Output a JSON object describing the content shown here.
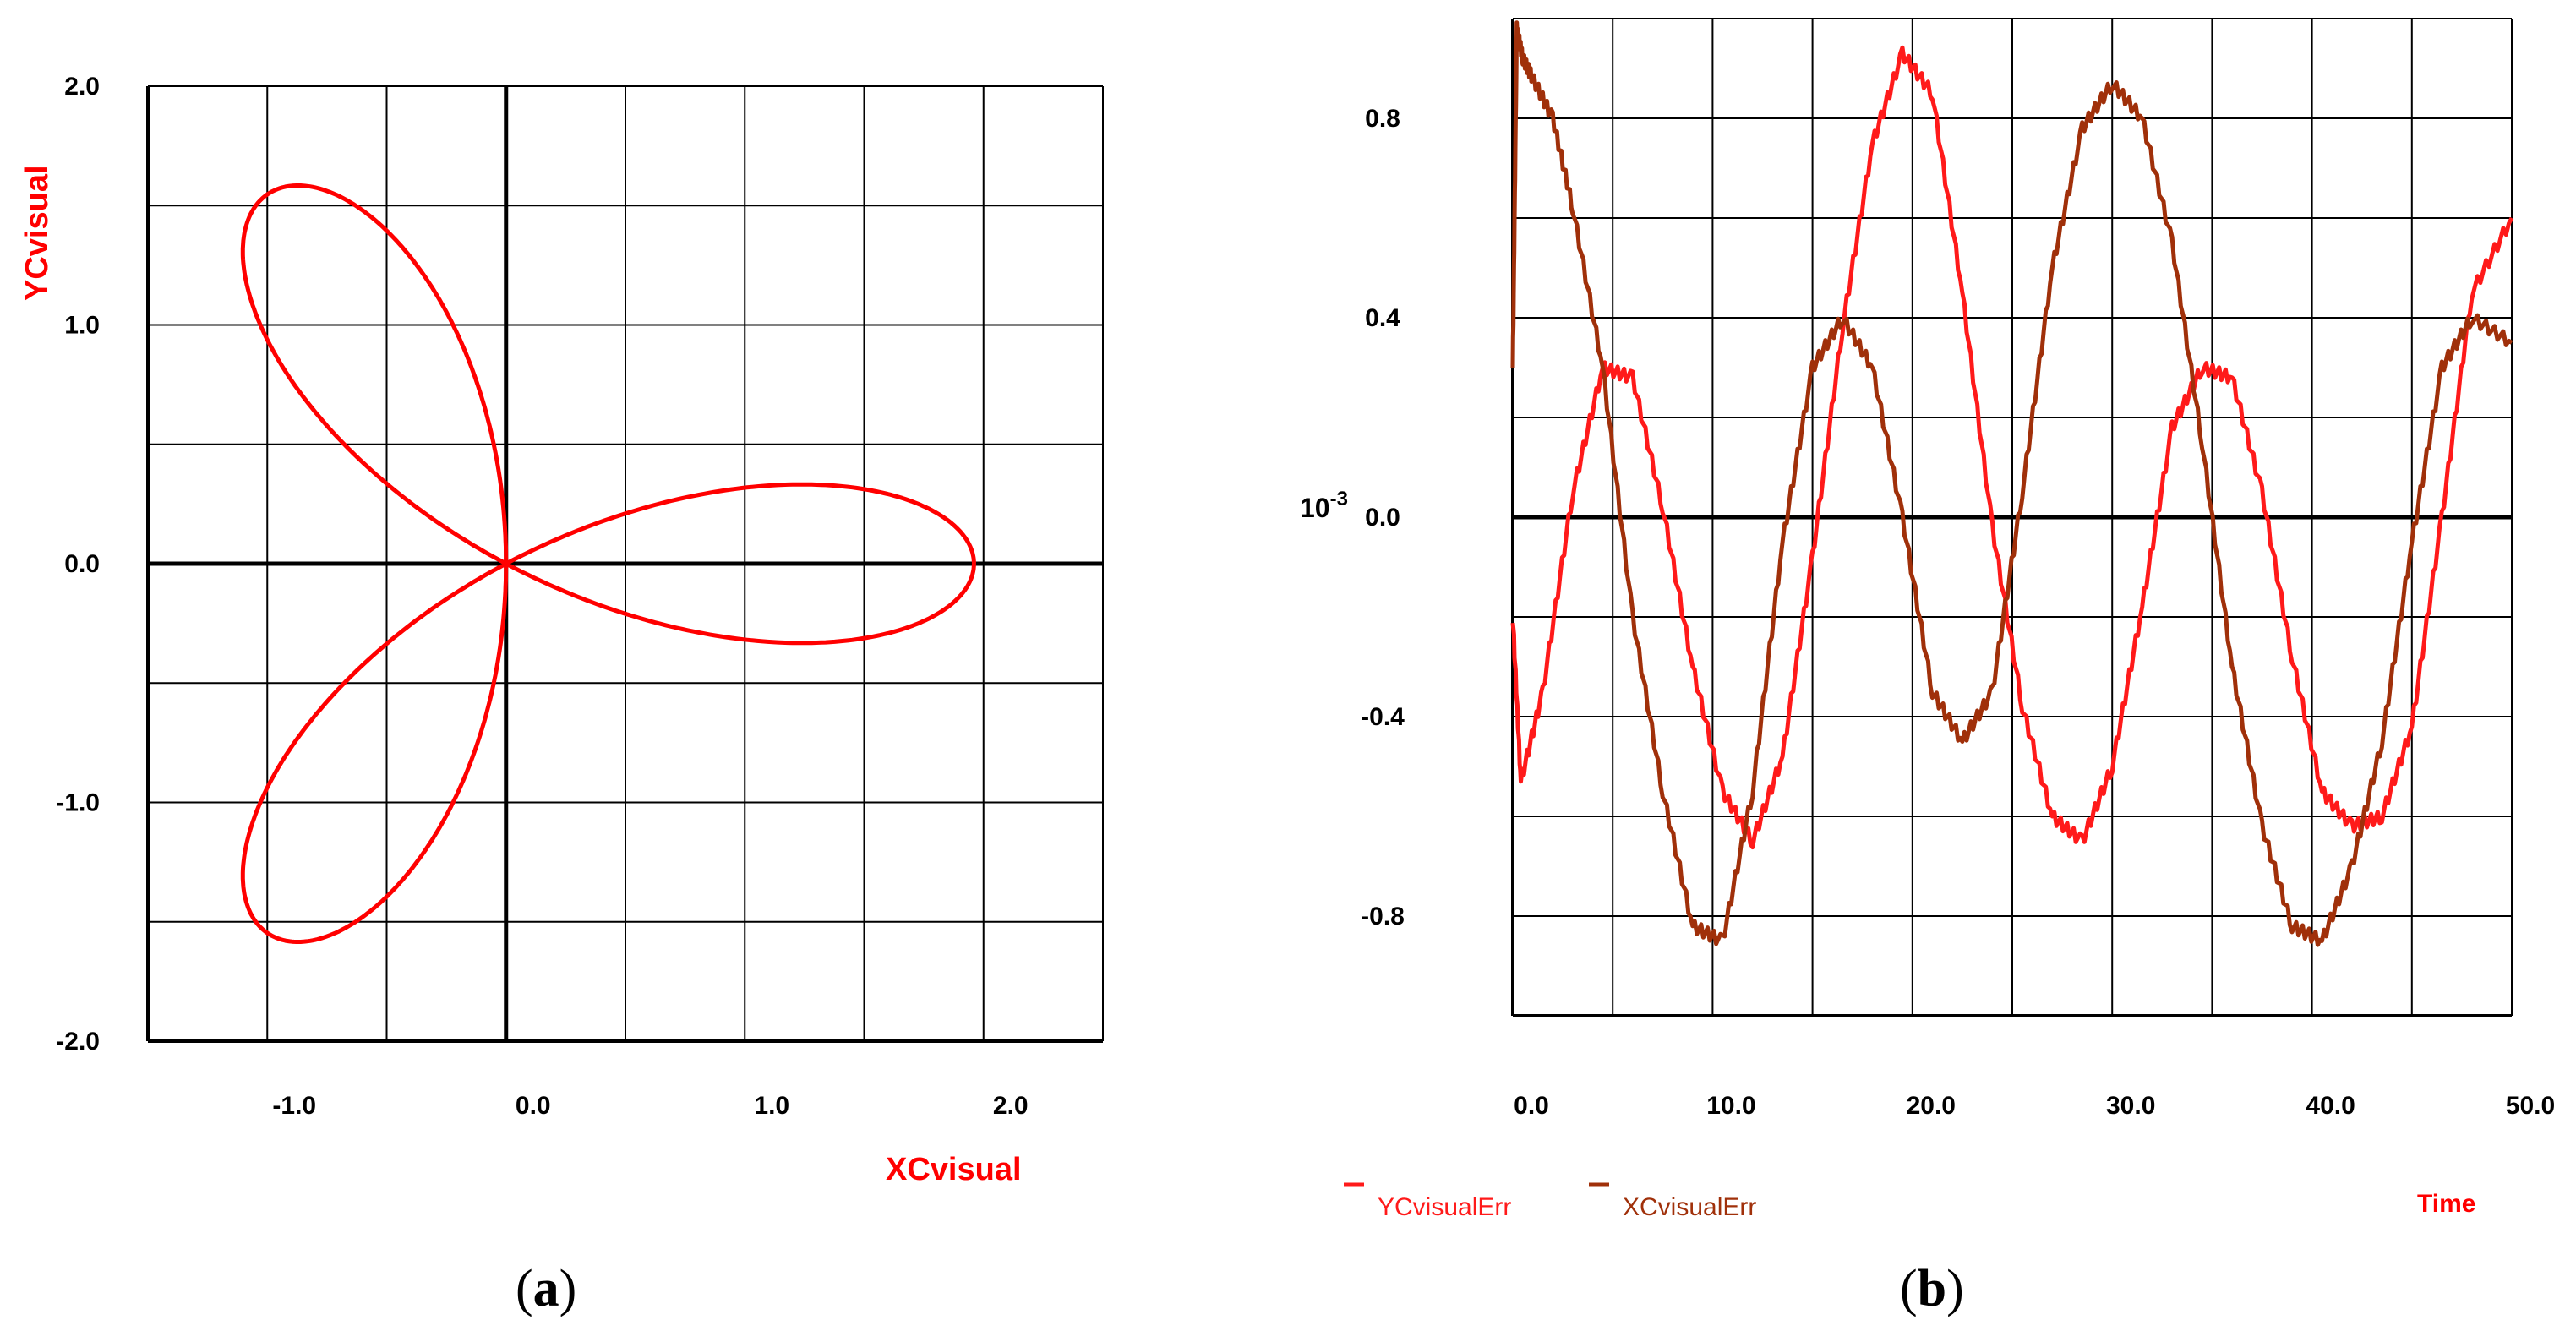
{
  "chart_data": [
    {
      "type": "line",
      "panel": "a",
      "xlabel": "XCvisual",
      "ylabel": "YCvisual",
      "xlim": [
        -1.5,
        2.5
      ],
      "ylim": [
        -2.0,
        2.0
      ],
      "x_ticks": [
        "-1.0",
        "0.0",
        "1.0",
        "2.0"
      ],
      "y_ticks": [
        "2.0",
        "1.0",
        "0.0",
        "-1.0",
        "-2.0"
      ],
      "grid": true,
      "series": [
        {
          "color": "#ff0000",
          "curve": "three-petal rose r = 2cos(3t)"
        }
      ],
      "caption": {
        "open": "(",
        "letter": "a",
        "close": ")"
      }
    },
    {
      "type": "line",
      "panel": "b",
      "xlabel": "Time",
      "scale_label": "10",
      "scale_exponent": "-3",
      "xlim": [
        0,
        50
      ],
      "ylim": [
        -1.0,
        1.0
      ],
      "x_ticks": [
        "0.0",
        "10.0",
        "20.0",
        "30.0",
        "40.0",
        "50.0"
      ],
      "y_ticks": [
        "0.8",
        "0.4",
        "0.0",
        "-0.4",
        "-0.8"
      ],
      "grid": true,
      "series": [
        {
          "name": "YCvisualErr",
          "color": "#ff1a1a",
          "x": [
            0,
            0.4,
            1.5,
            3,
            4.5,
            6,
            7.5,
            9,
            10.5,
            12,
            13.5,
            15,
            16.5,
            18,
            19.5,
            21,
            22.5,
            24,
            25.5,
            27,
            28.5,
            30,
            31.5,
            33,
            34.5,
            36,
            37.5,
            39,
            40.5,
            42,
            43.5,
            45,
            46.5,
            48,
            50
          ],
          "values": [
            -0.2,
            -0.53,
            -0.35,
            0.05,
            0.3,
            0.28,
            0.02,
            -0.3,
            -0.55,
            -0.65,
            -0.48,
            -0.08,
            0.38,
            0.75,
            0.93,
            0.85,
            0.45,
            -0.02,
            -0.38,
            -0.6,
            -0.65,
            -0.5,
            -0.18,
            0.18,
            0.3,
            0.28,
            0.05,
            -0.28,
            -0.55,
            -0.62,
            -0.6,
            -0.42,
            0.0,
            0.45,
            0.6
          ]
        },
        {
          "name": "XCvisualErr",
          "color": "#a0300a",
          "x": [
            0,
            0.2,
            0.5,
            1,
            2,
            3,
            4.5,
            6,
            7.5,
            9,
            10.5,
            12,
            13.5,
            15,
            16.5,
            18,
            19.5,
            21,
            22.5,
            24,
            25.5,
            27,
            28.5,
            30,
            31.5,
            33,
            34.5,
            36,
            37.5,
            39,
            40.5,
            42,
            43.5,
            45,
            46.5,
            48,
            50
          ],
          "values": [
            0.3,
            0.98,
            0.92,
            0.88,
            0.8,
            0.62,
            0.3,
            -0.2,
            -0.55,
            -0.82,
            -0.85,
            -0.55,
            -0.05,
            0.3,
            0.4,
            0.3,
            0.0,
            -0.35,
            -0.45,
            -0.35,
            0.05,
            0.5,
            0.78,
            0.87,
            0.8,
            0.55,
            0.15,
            -0.3,
            -0.62,
            -0.82,
            -0.85,
            -0.7,
            -0.45,
            -0.05,
            0.3,
            0.4,
            0.35
          ]
        }
      ],
      "caption": {
        "open": "(",
        "letter": "b",
        "close": ")"
      }
    }
  ]
}
